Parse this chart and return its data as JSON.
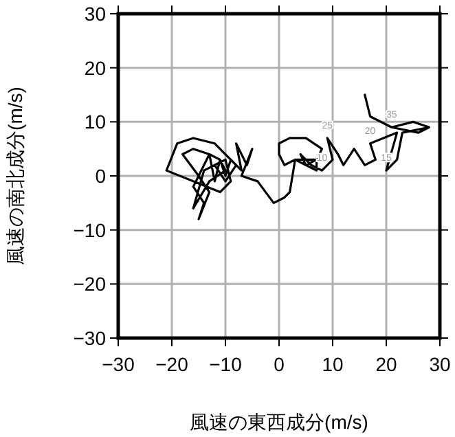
{
  "chart_data": {
    "type": "line",
    "xlabel": "風速の東西成分(m/s)",
    "ylabel": "風速の南北成分(m/s)",
    "xlim": [
      -30,
      30
    ],
    "ylim": [
      -30,
      30
    ],
    "xticks": [
      -30,
      -20,
      -10,
      0,
      10,
      20,
      30
    ],
    "yticks": [
      -30,
      -20,
      -10,
      0,
      10,
      20,
      30
    ],
    "grid": true,
    "marker": "none",
    "line_style": "solid",
    "series": [
      {
        "color": "#000000",
        "x": [
          28,
          26,
          21,
          17,
          16,
          17,
          21,
          25,
          28,
          23,
          22,
          20,
          22,
          17,
          18,
          16,
          14,
          12,
          11,
          9,
          10,
          8,
          6,
          4,
          5,
          7,
          7,
          5,
          3,
          1,
          0,
          0,
          2,
          5,
          8,
          7,
          3,
          2,
          1,
          -1,
          -4,
          -7,
          -5,
          -6,
          -8,
          -7,
          -9,
          -10,
          -11,
          -12,
          -13,
          -16,
          -14,
          -15,
          -13,
          -15,
          -18,
          -16,
          -13,
          -11,
          -10,
          -13,
          -16,
          -14,
          -12,
          -10,
          -9,
          -11,
          -21,
          -19,
          -16,
          -12,
          -10,
          -8,
          -10,
          -12
        ],
        "values": [
          9,
          8,
          9,
          11,
          15,
          11,
          9,
          10,
          9,
          8,
          3,
          1,
          8,
          6,
          3,
          2,
          5,
          2,
          4,
          7,
          3,
          1,
          2,
          4,
          2,
          1,
          3,
          2,
          3,
          2,
          4,
          6,
          7,
          7,
          5,
          3,
          3,
          -3,
          -4,
          -5,
          -1,
          0,
          5,
          2,
          6,
          1,
          3,
          0,
          3,
          -1,
          4,
          -2,
          -5,
          -8,
          -3,
          0,
          4,
          5,
          4,
          3,
          1,
          -1,
          -6,
          1,
          2,
          3,
          -1,
          -3,
          1,
          6,
          7,
          6,
          4,
          2,
          -1,
          2
        ]
      }
    ],
    "annotations": [
      {
        "text": "35",
        "x": 21,
        "y": 9
      },
      {
        "text": "25",
        "x": 9,
        "y": 7
      },
      {
        "text": "20",
        "x": 17,
        "y": 6
      },
      {
        "text": "15",
        "x": 20,
        "y": 1
      },
      {
        "text": "10",
        "x": 8,
        "y": 1
      }
    ]
  }
}
